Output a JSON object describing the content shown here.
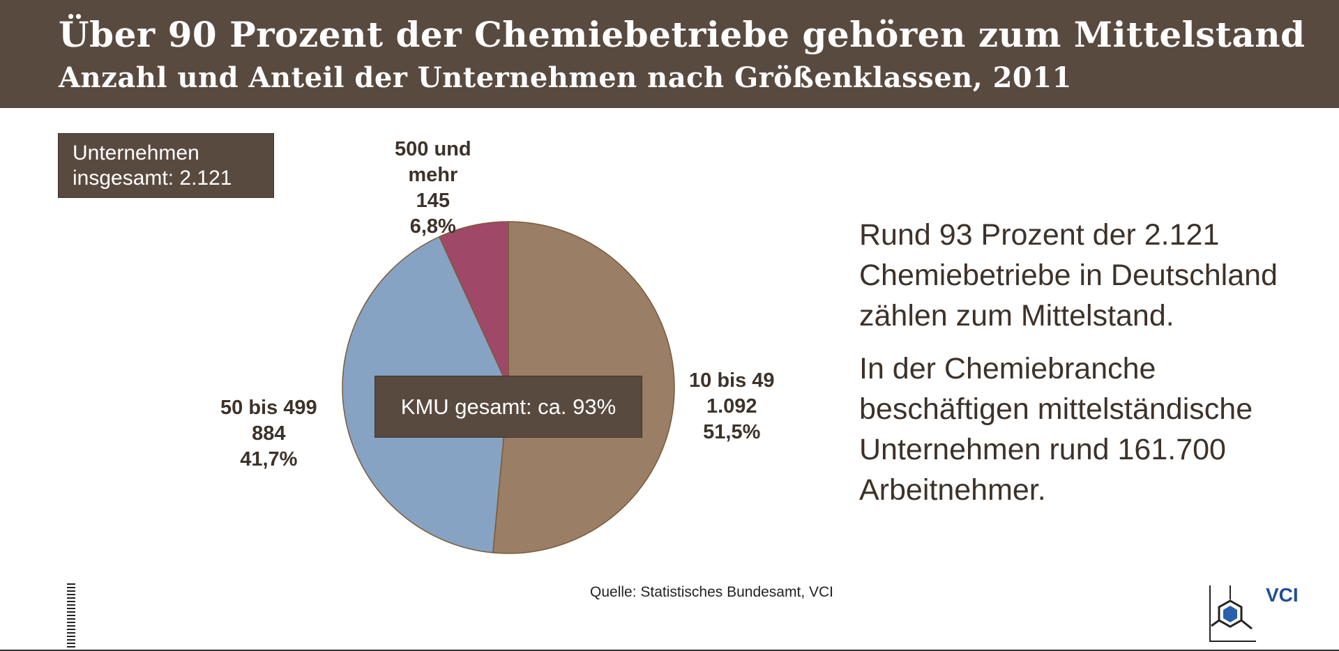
{
  "header": {
    "title": "Über 90 Prozent der Chemiebetriebe gehören zum Mittelstand",
    "subtitle": "Anzahl und Anteil der Unternehmen nach Größenklassen, 2011"
  },
  "total_box": {
    "line1": "Unternehmen",
    "line2": "insgesamt: 2.121"
  },
  "kmu_box": "KMU gesamt: ca. 93%",
  "chart_data": {
    "type": "pie",
    "slices": [
      {
        "label_lines": [
          "10 bis 49"
        ],
        "value": 1092,
        "value_label": "1.092",
        "percent": 51.5,
        "percent_label": "51,5%",
        "color": "#9a7e65"
      },
      {
        "label_lines": [
          "50 bis 499"
        ],
        "value": 884,
        "value_label": "884",
        "percent": 41.7,
        "percent_label": "41,7%",
        "color": "#87a3c3"
      },
      {
        "label_lines": [
          "500 und",
          "mehr"
        ],
        "value": 145,
        "value_label": "145",
        "percent": 6.8,
        "percent_label": "6,8%",
        "color": "#a04868"
      }
    ],
    "edge_color": "#7a5a3a"
  },
  "info": {
    "para1": [
      "Rund 93 Prozent der 2.121",
      "Chemiebetriebe in Deutschland",
      "zählen zum Mittelstand."
    ],
    "para2": [
      "In der Chemiebranche",
      "beschäftigen mittelständische",
      "Unternehmen rund 161.700",
      "Arbeitnehmer."
    ]
  },
  "source": "Quelle: Statistisches Bundesamt, VCI",
  "logo": {
    "text": "VCI",
    "hex_color": "#2a5fab"
  }
}
